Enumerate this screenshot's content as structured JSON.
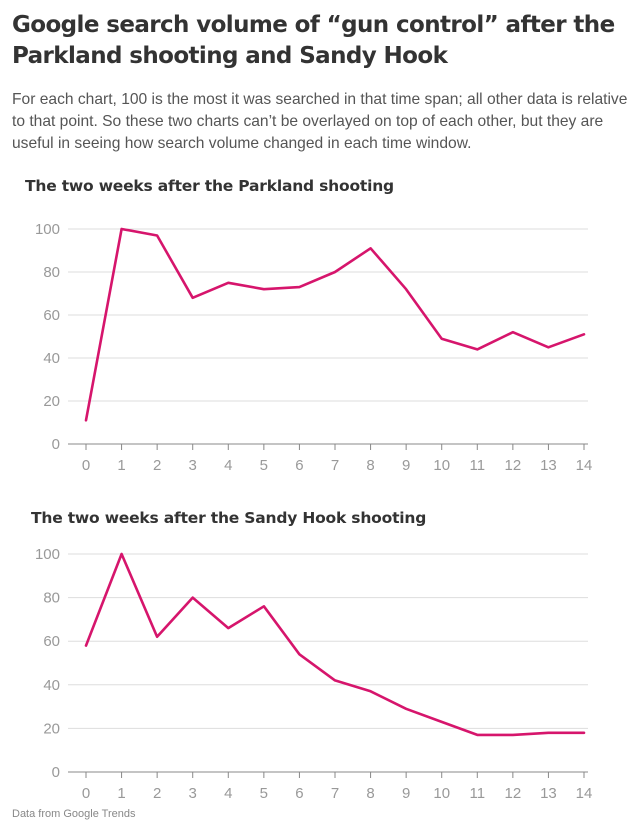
{
  "header": {
    "title": "Google search volume of “gun control” after the Parkland shooting and Sandy Hook",
    "description": "For each chart, 100 is the most it was searched in that time span; all other data is relative to that point. So these two charts can’t be overlayed on top of each other, but they are useful in seeing how search volume changed in each time window."
  },
  "footer": {
    "source": "Data from Google Trends"
  },
  "colors": {
    "line": "#d6156c",
    "grid": "#dddddd",
    "axis": "#888888",
    "tick_text": "#999999"
  },
  "chart_data": [
    {
      "type": "line",
      "title": "The two weeks after the Parkland shooting",
      "x": [
        0,
        1,
        2,
        3,
        4,
        5,
        6,
        7,
        8,
        9,
        10,
        11,
        12,
        13,
        14
      ],
      "series": [
        {
          "values": [
            11,
            100,
            97,
            68,
            75,
            72,
            73,
            80,
            91,
            72,
            49,
            44,
            52,
            45,
            51
          ]
        }
      ],
      "xlim": [
        0,
        14
      ],
      "ylim": [
        0,
        100
      ],
      "yticks": [
        0,
        20,
        40,
        60,
        80,
        100
      ],
      "grid": true
    },
    {
      "type": "line",
      "title": "The two weeks after the Sandy Hook shooting",
      "x": [
        0,
        1,
        2,
        3,
        4,
        5,
        6,
        7,
        8,
        9,
        10,
        11,
        12,
        13,
        14
      ],
      "series": [
        {
          "values": [
            58,
            100,
            62,
            80,
            66,
            76,
            54,
            42,
            37,
            29,
            23,
            17,
            17,
            18,
            18
          ]
        }
      ],
      "xlim": [
        0,
        14
      ],
      "ylim": [
        0,
        100
      ],
      "yticks": [
        0,
        20,
        40,
        60,
        80,
        100
      ],
      "grid": true
    }
  ]
}
